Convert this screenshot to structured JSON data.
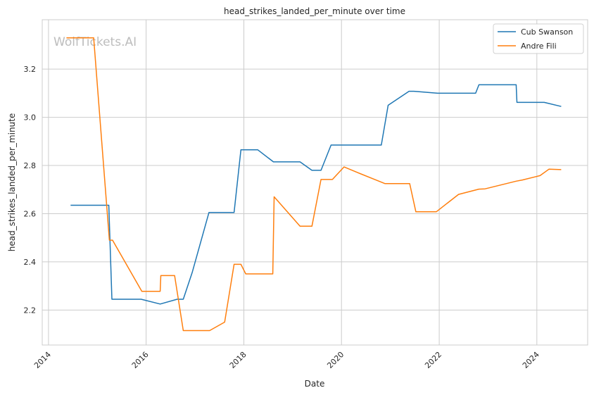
{
  "chart_data": {
    "type": "line",
    "title": "head_strikes_landed_per_minute over time",
    "xlabel": "Date",
    "ylabel": "head_strikes_landed_per_minute",
    "watermark": "WolfTickets.AI",
    "xlim": [
      "2013-11-15",
      "2025-01-15"
    ],
    "ylim": [
      2.055,
      3.405
    ],
    "x_ticks": [
      "2014",
      "2016",
      "2018",
      "2020",
      "2022",
      "2024"
    ],
    "y_ticks": [
      "2.2",
      "2.4",
      "2.6",
      "2.8",
      "3.0",
      "3.2"
    ],
    "grid": true,
    "legend_position": "top-right",
    "series": [
      {
        "name": "Cub Swanson",
        "color": "#1f77b4",
        "points": [
          [
            "2014-06-15",
            2.635
          ],
          [
            "2015-03-28",
            2.635
          ],
          [
            "2015-04-20",
            2.245
          ],
          [
            "2015-11-25",
            2.245
          ],
          [
            "2016-04-15",
            2.225
          ],
          [
            "2016-08-20",
            2.245
          ],
          [
            "2016-10-05",
            2.245
          ],
          [
            "2016-12-10",
            2.355
          ],
          [
            "2017-04-15",
            2.605
          ],
          [
            "2017-10-20",
            2.605
          ],
          [
            "2017-12-10",
            2.865
          ],
          [
            "2018-04-15",
            2.865
          ],
          [
            "2018-08-10",
            2.815
          ],
          [
            "2019-02-25",
            2.815
          ],
          [
            "2019-05-25",
            2.78
          ],
          [
            "2019-08-01",
            2.78
          ],
          [
            "2019-10-15",
            2.885
          ],
          [
            "2020-10-25",
            2.885
          ],
          [
            "2020-12-15",
            3.05
          ],
          [
            "2021-05-20",
            3.108
          ],
          [
            "2021-06-25",
            3.108
          ],
          [
            "2021-12-20",
            3.1
          ],
          [
            "2022-09-30",
            3.1
          ],
          [
            "2022-10-25",
            3.135
          ],
          [
            "2023-07-30",
            3.135
          ],
          [
            "2023-08-05",
            3.062
          ],
          [
            "2024-02-25",
            3.062
          ],
          [
            "2024-07-01",
            3.045
          ]
        ]
      },
      {
        "name": "Andre Fili",
        "color": "#ff7f0e",
        "points": [
          [
            "2014-05-15",
            3.33
          ],
          [
            "2014-12-05",
            3.33
          ],
          [
            "2015-04-01",
            2.49
          ],
          [
            "2015-04-25",
            2.49
          ],
          [
            "2015-11-30",
            2.278
          ],
          [
            "2016-04-15",
            2.278
          ],
          [
            "2016-04-20",
            2.343
          ],
          [
            "2016-08-01",
            2.343
          ],
          [
            "2016-10-05",
            2.115
          ],
          [
            "2017-04-20",
            2.115
          ],
          [
            "2017-08-10",
            2.15
          ],
          [
            "2017-10-20",
            2.39
          ],
          [
            "2017-12-10",
            2.39
          ],
          [
            "2018-01-15",
            2.35
          ],
          [
            "2018-08-05",
            2.35
          ],
          [
            "2018-08-15",
            2.67
          ],
          [
            "2019-02-25",
            2.548
          ],
          [
            "2019-05-25",
            2.548
          ],
          [
            "2019-08-01",
            2.742
          ],
          [
            "2019-10-25",
            2.742
          ],
          [
            "2020-01-20",
            2.794
          ],
          [
            "2020-05-25",
            2.765
          ],
          [
            "2020-11-20",
            2.725
          ],
          [
            "2021-05-25",
            2.725
          ],
          [
            "2021-07-10",
            2.608
          ],
          [
            "2021-12-10",
            2.608
          ],
          [
            "2022-05-25",
            2.68
          ],
          [
            "2022-10-25",
            2.702
          ],
          [
            "2022-12-10",
            2.703
          ],
          [
            "2023-07-30",
            2.735
          ],
          [
            "2023-09-15",
            2.74
          ],
          [
            "2024-01-25",
            2.758
          ],
          [
            "2024-04-01",
            2.785
          ],
          [
            "2024-07-01",
            2.783
          ]
        ]
      }
    ]
  }
}
